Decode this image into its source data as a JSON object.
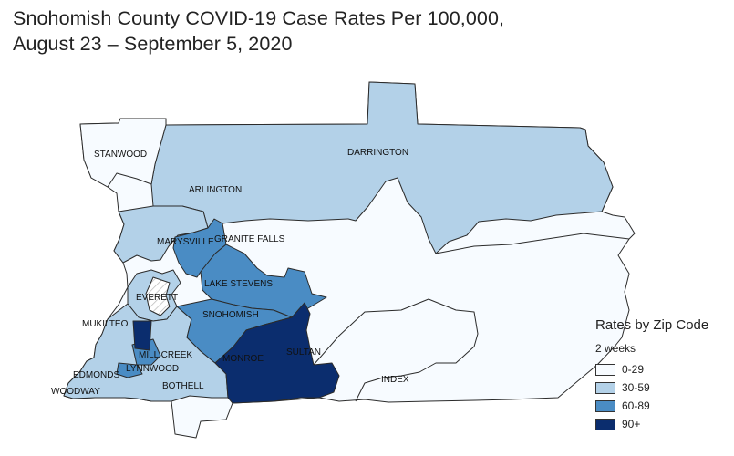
{
  "title": {
    "line1": "Snohomish County COVID-19 Case Rates Per 100,000,",
    "line2": "August 23 – September 5, 2020"
  },
  "colors": {
    "r0": "#f7fbff",
    "r1": "#b3d1e8",
    "r2": "#4a8cc4",
    "r3": "#0b2d6e",
    "border": "#2b2b2b",
    "hatch": "#bdbdbd"
  },
  "cities": {
    "stanwood": "STANWOOD",
    "darrington": "DARRINGTON",
    "arlington": "ARLINGTON",
    "marysville": "MARYSVILLE",
    "granite_falls": "GRANITE FALLS",
    "lake_stevens": "LAKE STEVENS",
    "everett": "EVERETT",
    "mukilteo": "MUKILTEO",
    "snohomish": "SNOHOMISH",
    "sultan": "SULTAN",
    "mill_creek": "MILL CREEK",
    "lynnwood": "LYNNWOOD",
    "monroe": "MONROE",
    "edmonds": "EDMONDS",
    "bothell": "BOTHELL",
    "woodway": "WOODWAY",
    "index": "INDEX"
  },
  "legend": {
    "title": "Rates by Zip Code",
    "subtitle": "2 weeks",
    "items": [
      {
        "label": "0-29",
        "color": "#f7fbff"
      },
      {
        "label": "30-59",
        "color": "#b3d1e8"
      },
      {
        "label": "60-89",
        "color": "#4a8cc4"
      },
      {
        "label": "90+",
        "color": "#0b2d6e"
      }
    ]
  }
}
